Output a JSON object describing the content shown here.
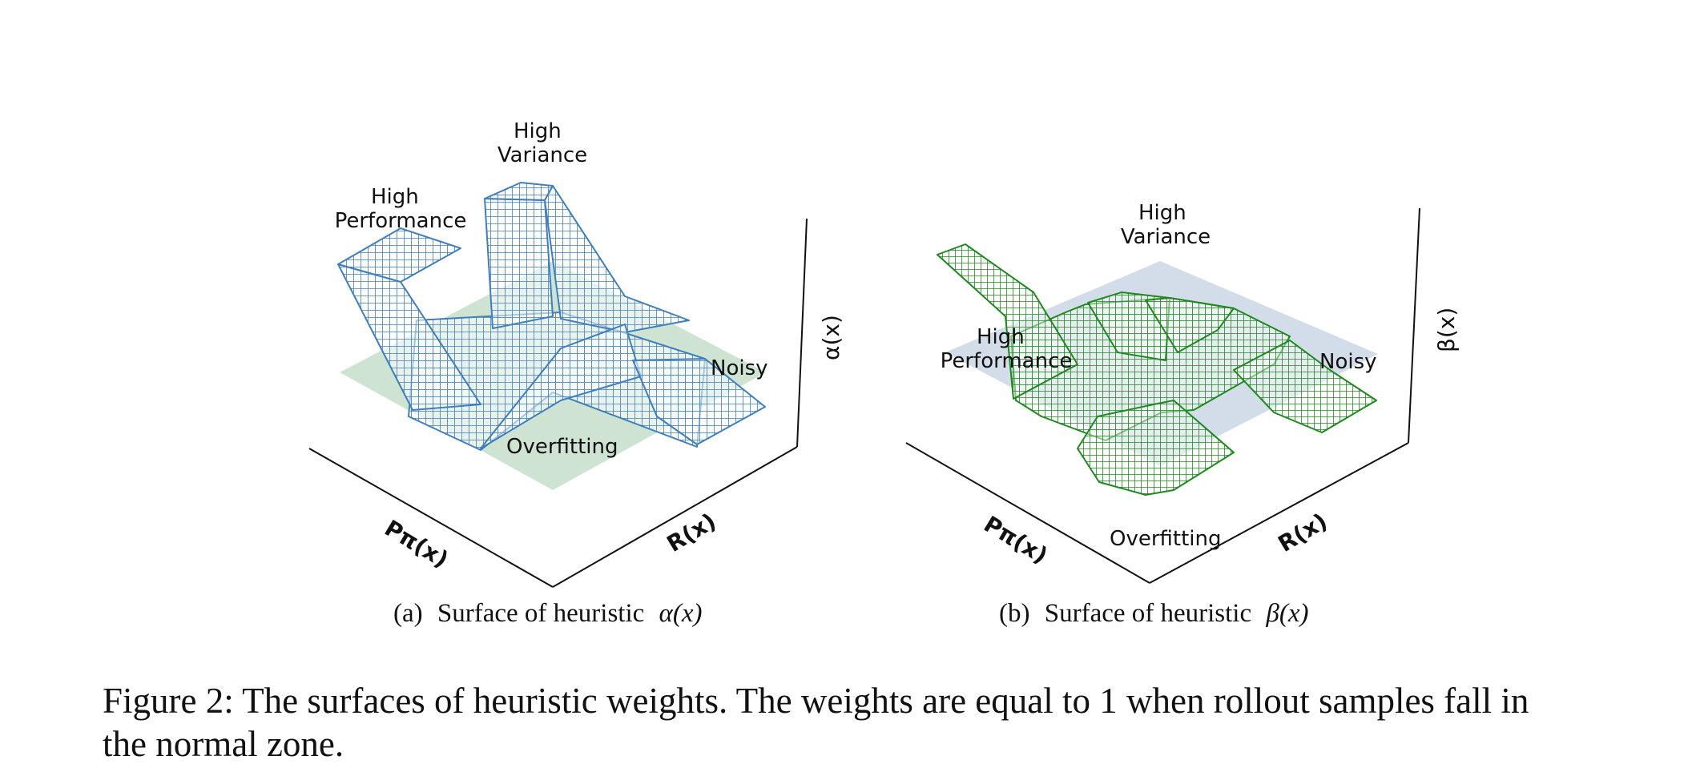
{
  "panels": [
    {
      "id": "a",
      "labels": {
        "high_performance": [
          "High",
          "Performance"
        ],
        "high_variance": [
          "High",
          "Variance"
        ],
        "noisy": "Noisy",
        "overfitting": "Overfitting"
      },
      "axes": {
        "x": "Pπ(x)",
        "y": "R(x)",
        "z": "α(x)"
      },
      "subcaption": {
        "tag": "(a)",
        "text": "Surface of heuristic",
        "symbol": "α(x)"
      },
      "colors": {
        "mesh": "#3f7fbf",
        "plane": "#cfe3d2"
      }
    },
    {
      "id": "b",
      "labels": {
        "high_performance": [
          "High",
          "Performance"
        ],
        "high_variance": [
          "High",
          "Variance"
        ],
        "noisy": "Noisy",
        "overfitting": "Overfitting"
      },
      "axes": {
        "x": "Pπ(x)",
        "y": "R(x)",
        "z": "β(x)"
      },
      "subcaption": {
        "tag": "(b)",
        "text": "Surface of heuristic",
        "symbol": "β(x)"
      },
      "colors": {
        "mesh": "#1e8a1e",
        "plane": "#d3dde9"
      }
    }
  ],
  "caption": {
    "lines": [
      "Figure 2: The surfaces of heuristic weights. The weights are equal to 1 when rollout samples fall in",
      "the normal zone."
    ]
  }
}
